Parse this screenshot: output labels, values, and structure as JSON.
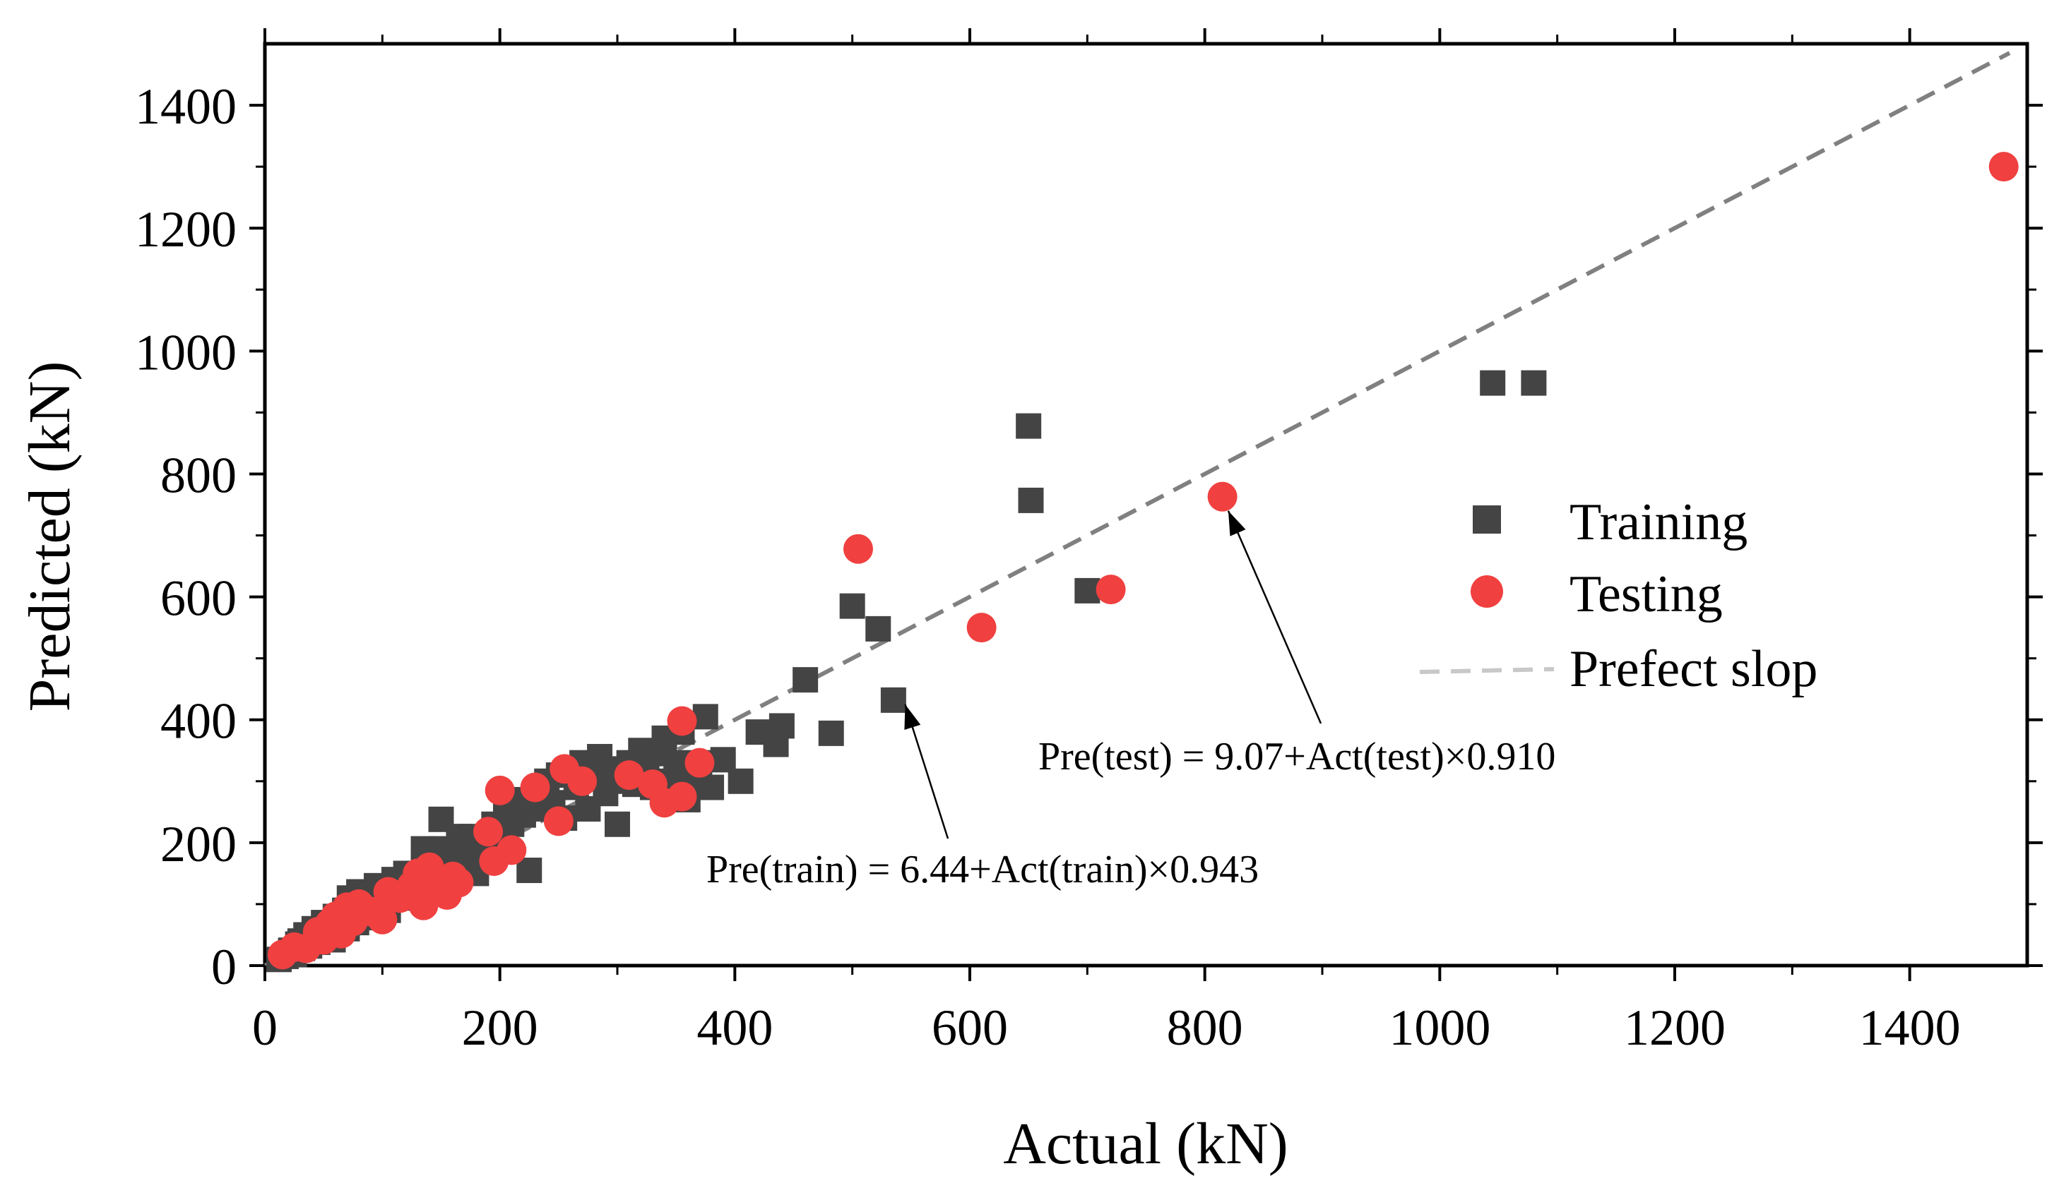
{
  "chart_data": {
    "type": "scatter",
    "xlabel": "Actual (kN)",
    "ylabel": "Predicted (kN)",
    "xlim": [
      0,
      1500
    ],
    "ylim": [
      0,
      1500
    ],
    "xticks": [
      0,
      200,
      400,
      600,
      800,
      1000,
      1200,
      1400
    ],
    "yticks": [
      0,
      200,
      400,
      600,
      800,
      1000,
      1200,
      1400
    ],
    "grid": false,
    "legend_position": "right",
    "series": [
      {
        "name": "Training",
        "marker": "square",
        "color": "#444444",
        "points": [
          [
            12,
            10
          ],
          [
            18,
            15
          ],
          [
            22,
            25
          ],
          [
            25,
            18
          ],
          [
            28,
            35
          ],
          [
            30,
            40
          ],
          [
            32,
            28
          ],
          [
            35,
            50
          ],
          [
            38,
            32
          ],
          [
            40,
            45
          ],
          [
            42,
            60
          ],
          [
            45,
            38
          ],
          [
            48,
            55
          ],
          [
            50,
            70
          ],
          [
            52,
            48
          ],
          [
            55,
            65
          ],
          [
            58,
            42
          ],
          [
            60,
            80
          ],
          [
            62,
            55
          ],
          [
            65,
            75
          ],
          [
            68,
            90
          ],
          [
            70,
            60
          ],
          [
            72,
            110
          ],
          [
            75,
            85
          ],
          [
            78,
            70
          ],
          [
            80,
            120
          ],
          [
            82,
            95
          ],
          [
            85,
            100
          ],
          [
            88,
            78
          ],
          [
            90,
            115
          ],
          [
            95,
            130
          ],
          [
            100,
            105
          ],
          [
            105,
            90
          ],
          [
            110,
            140
          ],
          [
            115,
            120
          ],
          [
            120,
            150
          ],
          [
            125,
            110
          ],
          [
            130,
            135
          ],
          [
            135,
            160
          ],
          [
            140,
            125
          ],
          [
            145,
            175
          ],
          [
            150,
            190
          ],
          [
            155,
            140
          ],
          [
            160,
            180
          ],
          [
            165,
            200
          ],
          [
            170,
            160
          ],
          [
            175,
            210
          ],
          [
            180,
            150
          ],
          [
            185,
            195
          ],
          [
            190,
            175
          ],
          [
            195,
            230
          ],
          [
            200,
            215
          ],
          [
            205,
            250
          ],
          [
            210,
            230
          ],
          [
            215,
            270
          ],
          [
            220,
            245
          ],
          [
            225,
            155
          ],
          [
            230,
            280
          ],
          [
            235,
            255
          ],
          [
            240,
            300
          ],
          [
            245,
            265
          ],
          [
            250,
            310
          ],
          [
            255,
            240
          ],
          [
            260,
            320
          ],
          [
            265,
            290
          ],
          [
            270,
            330
          ],
          [
            275,
            255
          ],
          [
            280,
            305
          ],
          [
            285,
            340
          ],
          [
            290,
            280
          ],
          [
            295,
            320
          ],
          [
            300,
            230
          ],
          [
            305,
            300
          ],
          [
            310,
            330
          ],
          [
            315,
            295
          ],
          [
            320,
            350
          ],
          [
            325,
            310
          ],
          [
            330,
            290
          ],
          [
            335,
            345
          ],
          [
            340,
            370
          ],
          [
            345,
            300
          ],
          [
            350,
            330
          ],
          [
            355,
            380
          ],
          [
            360,
            270
          ],
          [
            365,
            310
          ],
          [
            370,
            330
          ],
          [
            375,
            405
          ],
          [
            380,
            290
          ],
          [
            390,
            335
          ],
          [
            405,
            300
          ],
          [
            420,
            380
          ],
          [
            435,
            360
          ],
          [
            440,
            390
          ],
          [
            460,
            465
          ],
          [
            482,
            378
          ],
          [
            500,
            585
          ],
          [
            522,
            548
          ],
          [
            535,
            432
          ],
          [
            650,
            878
          ],
          [
            652,
            757
          ],
          [
            700,
            610
          ],
          [
            1045,
            948
          ],
          [
            1080,
            948
          ],
          [
            150,
            238
          ],
          [
            165,
            210
          ],
          [
            135,
            190
          ]
        ]
      },
      {
        "name": "Testing",
        "marker": "circle",
        "color": "#f04040",
        "points": [
          [
            15,
            18
          ],
          [
            25,
            30
          ],
          [
            35,
            28
          ],
          [
            45,
            55
          ],
          [
            50,
            42
          ],
          [
            55,
            68
          ],
          [
            60,
            80
          ],
          [
            65,
            52
          ],
          [
            70,
            95
          ],
          [
            75,
            72
          ],
          [
            80,
            100
          ],
          [
            90,
            88
          ],
          [
            100,
            75
          ],
          [
            105,
            120
          ],
          [
            115,
            110
          ],
          [
            125,
            130
          ],
          [
            130,
            150
          ],
          [
            135,
            98
          ],
          [
            140,
            160
          ],
          [
            145,
            128
          ],
          [
            150,
            140
          ],
          [
            155,
            115
          ],
          [
            160,
            145
          ],
          [
            165,
            135
          ],
          [
            190,
            218
          ],
          [
            195,
            170
          ],
          [
            200,
            285
          ],
          [
            210,
            188
          ],
          [
            230,
            290
          ],
          [
            250,
            235
          ],
          [
            255,
            320
          ],
          [
            270,
            300
          ],
          [
            310,
            310
          ],
          [
            330,
            295
          ],
          [
            340,
            265
          ],
          [
            355,
            275
          ],
          [
            355,
            398
          ],
          [
            370,
            330
          ],
          [
            505,
            678
          ],
          [
            610,
            550
          ],
          [
            720,
            612
          ],
          [
            815,
            763
          ],
          [
            1480,
            1300
          ]
        ]
      }
    ],
    "reference_line": {
      "name": "Prefect slop",
      "from": [
        0,
        0
      ],
      "to": [
        1485,
        1485
      ],
      "style": "dashed",
      "color": "#808080"
    },
    "annotations": [
      {
        "text": "Pre(train) = 6.44+Act(train)×0.943",
        "arrow_to": [
          545,
          425
        ]
      },
      {
        "text": "Pre(test) = 9.07+Act(test)×0.910",
        "arrow_to": [
          820,
          740
        ]
      }
    ]
  }
}
